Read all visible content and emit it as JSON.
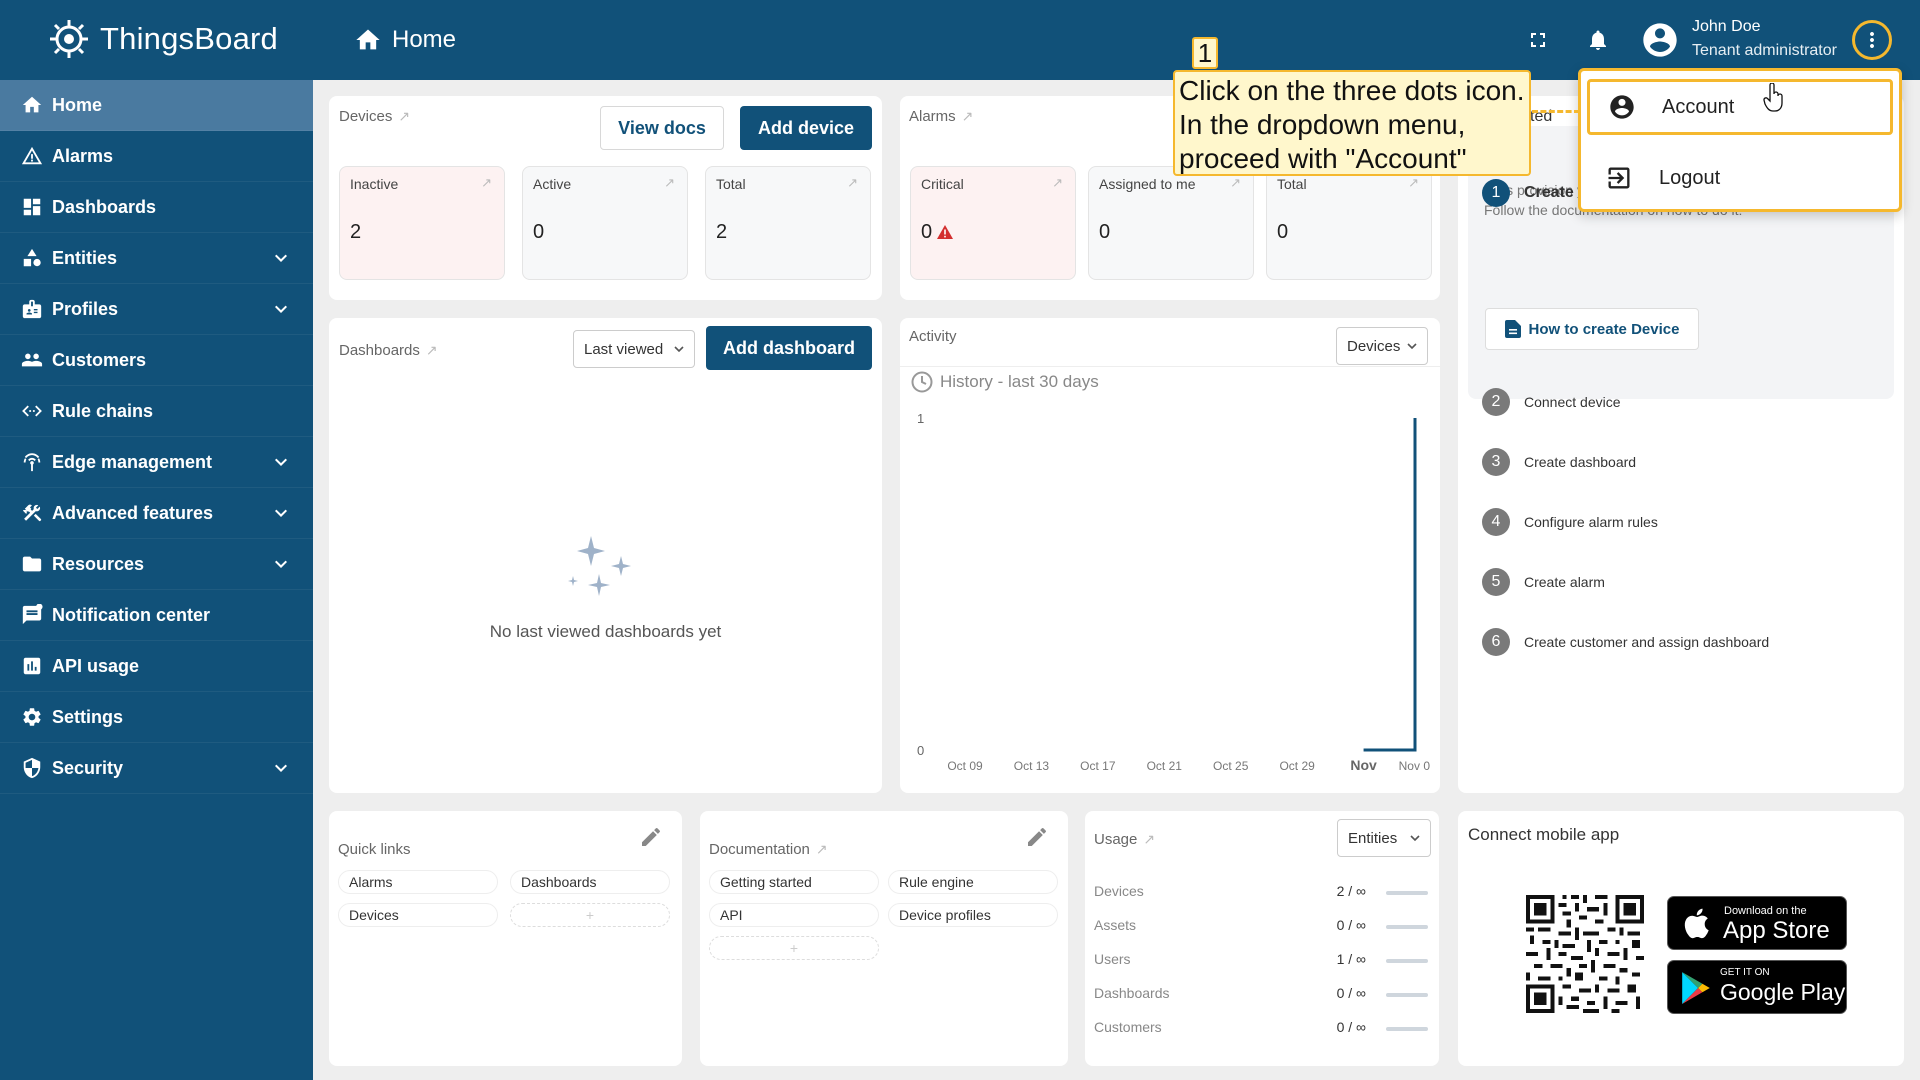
{
  "app": {
    "name": "ThingsBoard",
    "page_title": "Home"
  },
  "user": {
    "name": "John Doe",
    "role": "Tenant administrator"
  },
  "sidebar": {
    "items": [
      {
        "label": "Home",
        "icon": "home-icon",
        "active": true,
        "expandable": false
      },
      {
        "label": "Alarms",
        "icon": "warning-icon",
        "expandable": false
      },
      {
        "label": "Dashboards",
        "icon": "dashboard-icon",
        "expandable": false
      },
      {
        "label": "Entities",
        "icon": "entities-icon",
        "expandable": true
      },
      {
        "label": "Profiles",
        "icon": "profiles-icon",
        "expandable": true
      },
      {
        "label": "Customers",
        "icon": "customers-icon",
        "expandable": false
      },
      {
        "label": "Rule chains",
        "icon": "rule-chains-icon",
        "expandable": false
      },
      {
        "label": "Edge management",
        "icon": "edge-icon",
        "expandable": true
      },
      {
        "label": "Advanced features",
        "icon": "tools-icon",
        "expandable": true
      },
      {
        "label": "Resources",
        "icon": "folder-icon",
        "expandable": true
      },
      {
        "label": "Notification center",
        "icon": "notification-icon",
        "expandable": false
      },
      {
        "label": "API usage",
        "icon": "api-usage-icon",
        "expandable": false
      },
      {
        "label": "Settings",
        "icon": "gear-icon",
        "expandable": false
      },
      {
        "label": "Security",
        "icon": "shield-icon",
        "expandable": true
      }
    ]
  },
  "devices_card": {
    "title": "Devices",
    "view_docs": "View docs",
    "add_device": "Add device",
    "stats": [
      {
        "label": "Inactive",
        "value": "2"
      },
      {
        "label": "Active",
        "value": "0"
      },
      {
        "label": "Total",
        "value": "2"
      }
    ]
  },
  "alarms_card": {
    "title": "Alarms",
    "stats": [
      {
        "label": "Critical",
        "value": "0"
      },
      {
        "label": "Assigned to me",
        "value": "0"
      },
      {
        "label": "Total",
        "value": "0"
      }
    ]
  },
  "dashboards_card": {
    "title": "Dashboards",
    "filter": "Last viewed",
    "add_dashboard": "Add dashboard",
    "empty_text": "No last viewed dashboards yet"
  },
  "activity_card": {
    "title": "Activity",
    "filter": "Devices",
    "history_label": "History - last 30 days"
  },
  "chart_data": {
    "type": "line",
    "x": [
      "Oct 09",
      "Oct 13",
      "Oct 17",
      "Oct 21",
      "Oct 25",
      "Oct 29",
      "Nov",
      "Nov 0"
    ],
    "series": [
      {
        "values": [
          0,
          0,
          0,
          0,
          0,
          0,
          0,
          1
        ]
      }
    ],
    "ylim": [
      0,
      1
    ],
    "yticks": [
      "0",
      "1"
    ],
    "color": "#115179"
  },
  "getting_started": {
    "title_fragment": "ted",
    "steps": [
      {
        "num": "1",
        "label": "Create",
        "active": true
      },
      {
        "num": "2",
        "label": "Connect device"
      },
      {
        "num": "3",
        "label": "Create dashboard"
      },
      {
        "num": "4",
        "label": "Configure alarm rules"
      },
      {
        "num": "5",
        "label": "Create alarm"
      },
      {
        "num": "6",
        "label": "Create customer and assign dashboard"
      }
    ],
    "description_1": "Let's provision your first device to the platform via UI.",
    "description_2": "Follow the documentation on how to do it:",
    "how_to_button": "How to create Device"
  },
  "quick_links": {
    "title": "Quick links",
    "links": [
      "Alarms",
      "Dashboards",
      "Devices"
    ],
    "add": "+"
  },
  "documentation": {
    "title": "Documentation",
    "links": [
      "Getting started",
      "Rule engine",
      "API",
      "Device profiles"
    ],
    "add": "+"
  },
  "usage": {
    "title": "Usage",
    "filter": "Entities",
    "rows": [
      {
        "label": "Devices",
        "value": "2 / ∞"
      },
      {
        "label": "Assets",
        "value": "0 / ∞"
      },
      {
        "label": "Users",
        "value": "1 / ∞"
      },
      {
        "label": "Dashboards",
        "value": "0 / ∞"
      },
      {
        "label": "Customers",
        "value": "0 / ∞"
      }
    ]
  },
  "mobile": {
    "title": "Connect mobile app",
    "app_store_small": "Download on the",
    "app_store_big": "App Store",
    "google_small": "GET IT ON",
    "google_big": "Google Play"
  },
  "dropdown": {
    "items": [
      "Account",
      "Logout"
    ]
  },
  "callout": {
    "number": "1",
    "line1": "Click on the three dots icon.",
    "line2": "In the dropdown menu,",
    "line3": "proceed with \"Account\""
  },
  "colors": {
    "primary": "#115179",
    "sidebar_active": "#4a7aa0",
    "highlight": "#f5b82e",
    "critical": "#d32f2f"
  }
}
